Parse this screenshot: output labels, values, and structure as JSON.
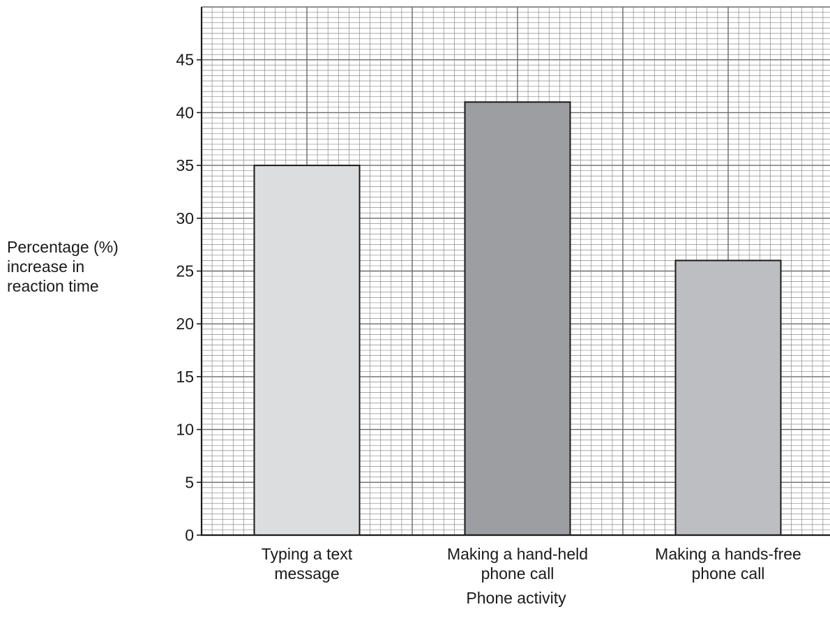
{
  "chart_data": {
    "type": "bar",
    "title": "",
    "xlabel": "Phone activity",
    "ylabel": [
      "Percentage (%)",
      "increase in",
      "reaction time"
    ],
    "categories": [
      [
        "Typing a text",
        "message"
      ],
      [
        "Making a hand-held",
        "phone call"
      ],
      [
        "Making a hands-free",
        "phone call"
      ]
    ],
    "values": [
      35,
      41,
      26
    ],
    "bar_colors": [
      "#dcdddf",
      "#9d9ea1",
      "#bdbec1"
    ],
    "ylim": [
      0,
      50
    ],
    "yticks": [
      0,
      5,
      10,
      15,
      20,
      25,
      30,
      35,
      40,
      45
    ],
    "grid": true,
    "legend": "none"
  }
}
